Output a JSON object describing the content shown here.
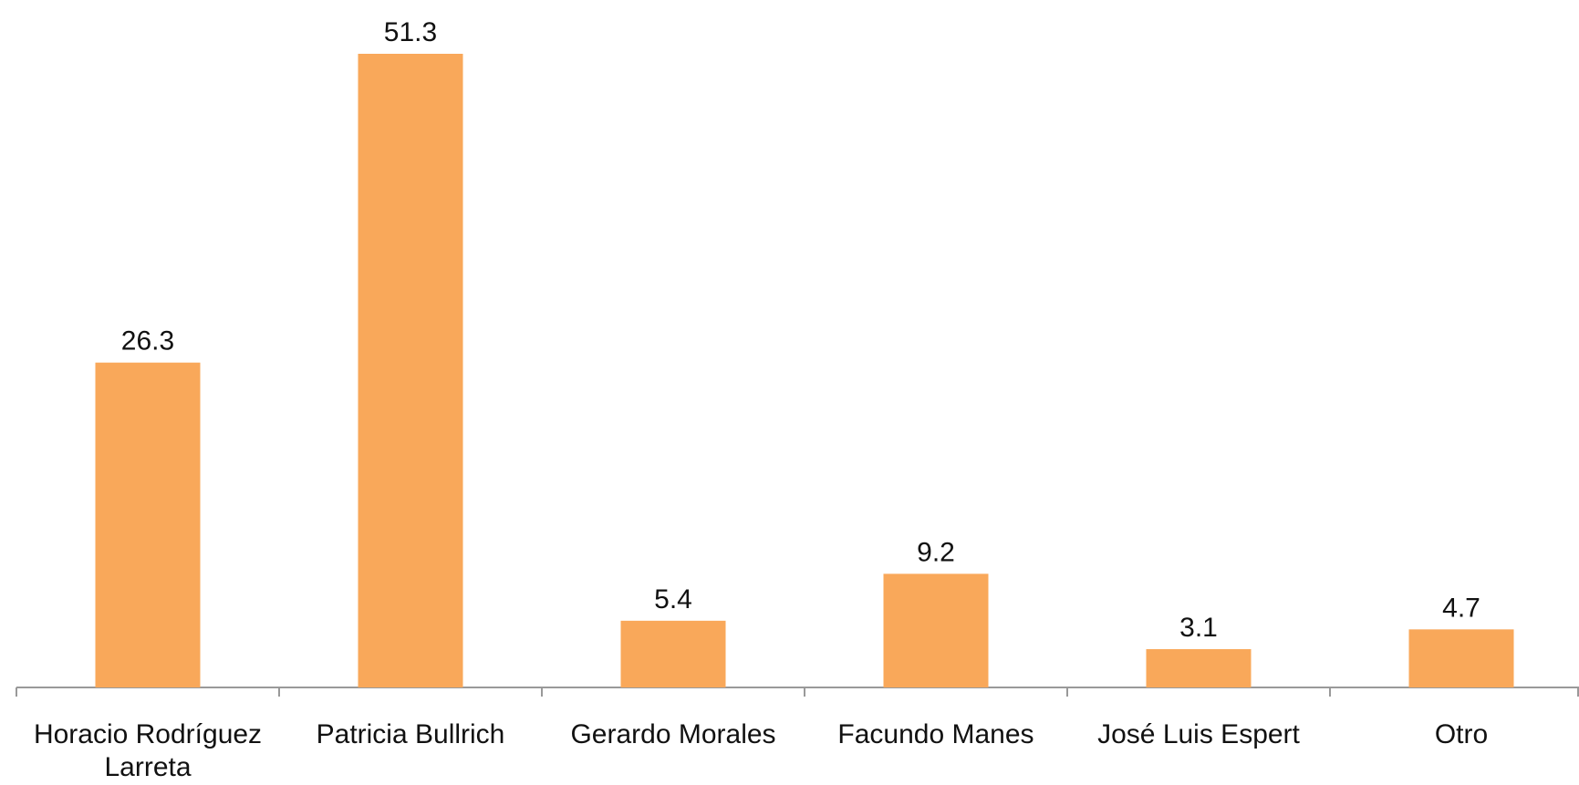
{
  "chart_data": {
    "type": "bar",
    "categories": [
      "Horacio Rodríguez Larreta",
      "Patricia Bullrich",
      "Gerardo Morales",
      "Facundo Manes",
      "José Luis Espert",
      "Otro"
    ],
    "values": [
      26.3,
      51.3,
      5.4,
      9.2,
      3.1,
      4.7
    ],
    "color": "#f9a85a"
  }
}
